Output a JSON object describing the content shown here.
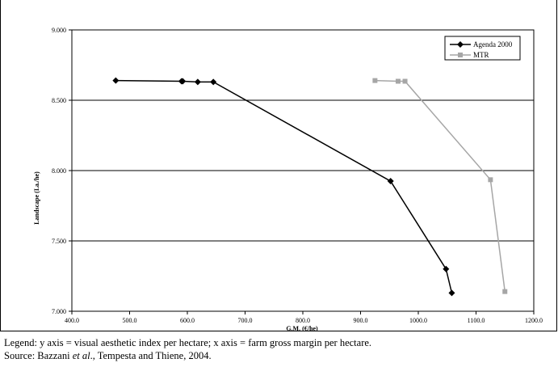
{
  "chart_data": {
    "type": "line",
    "title": "",
    "xlabel": "G.M. (€/he)",
    "ylabel": "Landscape (I.a./he)",
    "xlim": [
      400,
      1200
    ],
    "ylim": [
      7.0,
      9.0
    ],
    "x_ticks": [
      "400.0",
      "500.0",
      "600.0",
      "700.0",
      "800.0",
      "900.0",
      "1000.0",
      "1100.0",
      "1200.0"
    ],
    "y_ticks": [
      "7.000",
      "7.500",
      "8.000",
      "8.500",
      "9.000"
    ],
    "grid": "horizontal",
    "legend_position": "top-right",
    "series": [
      {
        "name": "Agenda 2000",
        "color": "#000000",
        "marker": "diamond",
        "points": [
          [
            476,
            8.64
          ],
          [
            590,
            8.635
          ],
          [
            592,
            8.635
          ],
          [
            618,
            8.63
          ],
          [
            645,
            8.63
          ],
          [
            952,
            7.925
          ],
          [
            1048,
            7.3
          ],
          [
            1058,
            7.13
          ]
        ]
      },
      {
        "name": "MTR",
        "color": "#a6a6a6",
        "marker": "square",
        "points": [
          [
            925,
            8.64
          ],
          [
            965,
            8.635
          ],
          [
            977,
            8.635
          ],
          [
            1125,
            7.935
          ],
          [
            1150,
            7.14
          ]
        ]
      }
    ]
  },
  "caption": {
    "legend_line": "Legend: y axis = visual aesthetic index per hectare; x axis = farm gross margin per hectare.",
    "source_prefix": "Source: Bazzani ",
    "source_etal": "et al",
    "source_suffix": "., Tempesta and Thiene, 2004."
  }
}
